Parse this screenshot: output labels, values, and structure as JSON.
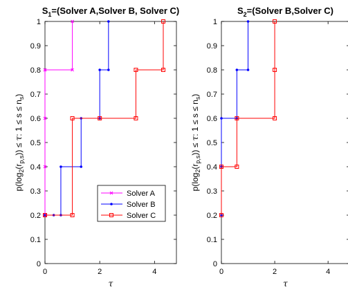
{
  "chart_data": [
    {
      "type": "line",
      "title": "S1 =(Solver A,Solver B, Solver C)",
      "title_parts": [
        "S",
        "1",
        "=(Solver A,Solver B, Solver C)"
      ],
      "xlabel": "τ",
      "ylabel": "p(log2(rp,s)) ≤ τ: 1 ≤ s ≤ ns",
      "xlim": [
        0,
        4.8
      ],
      "ylim": [
        0,
        1
      ],
      "x_ticks": [
        0,
        2,
        4
      ],
      "y_ticks": [
        0,
        0.1,
        0.2,
        0.3,
        0.4,
        0.5,
        0.6,
        0.7,
        0.8,
        0.9,
        1
      ],
      "x_tick_labels": [
        "0",
        "2",
        "4"
      ],
      "y_tick_labels": [
        "0",
        "0.1",
        "0.2",
        "0.3",
        "0.4",
        "0.5",
        "0.6",
        "0.7",
        "0.8",
        "0.9",
        "1"
      ],
      "grid": false,
      "legend_position": "lower-right",
      "series": [
        {
          "name": "Solver A",
          "color": "#ff00ff",
          "marker": "x",
          "x": [
            0,
            0,
            0,
            0,
            0,
            1,
            1
          ],
          "y": [
            0.2,
            0.4,
            0.6,
            0.8,
            0.8,
            0.8,
            1.0
          ]
        },
        {
          "name": "Solver B",
          "color": "#0000ff",
          "marker": "dot",
          "x": [
            0,
            0.32,
            0.58,
            0.58,
            1.32,
            1.32,
            2.0,
            2.0,
            2.32,
            2.32
          ],
          "y": [
            0.2,
            0.2,
            0.2,
            0.4,
            0.4,
            0.6,
            0.6,
            0.8,
            0.8,
            1.0
          ]
        },
        {
          "name": "Solver C",
          "color": "#ff0000",
          "marker": "square",
          "x": [
            0,
            1.0,
            1.0,
            2.0,
            3.32,
            3.32,
            4.32,
            4.32
          ],
          "y": [
            0.2,
            0.2,
            0.6,
            0.6,
            0.6,
            0.8,
            0.8,
            1.0
          ]
        }
      ]
    },
    {
      "type": "line",
      "title": "S2 =(Solver B,Solver C)",
      "title_parts": [
        "S",
        "2",
        "=(Solver B,Solver C)"
      ],
      "xlabel": "τ",
      "ylabel": "p(log2(rp,s)) ≤ τ: 1 ≤ s ≤ ns",
      "xlim": [
        0,
        4.8
      ],
      "ylim": [
        0,
        1
      ],
      "x_ticks": [
        0,
        2,
        4
      ],
      "y_ticks": [
        0,
        0.1,
        0.2,
        0.3,
        0.4,
        0.5,
        0.6,
        0.7,
        0.8,
        0.9,
        1
      ],
      "x_tick_labels": [
        "0",
        "2",
        "4"
      ],
      "y_tick_labels": [
        "0",
        "0.1",
        "0.2",
        "0.3",
        "0.4",
        "0.5",
        "0.6",
        "0.7",
        "0.8",
        "0.9",
        "1"
      ],
      "grid": false,
      "legend_position": "none",
      "series": [
        {
          "color": "#0000ff",
          "marker": "dot",
          "x": [
            0,
            0,
            0,
            0.58,
            0.58,
            1.0,
            1.0
          ],
          "y": [
            0.2,
            0.4,
            0.6,
            0.6,
            0.8,
            0.8,
            1.0
          ]
        },
        {
          "color": "#ff0000",
          "marker": "square",
          "x": [
            0,
            0,
            0.58,
            0.58,
            2.0,
            2.0,
            2.0
          ],
          "y": [
            0.2,
            0.4,
            0.4,
            0.6,
            0.6,
            0.8,
            1.0
          ]
        }
      ]
    }
  ]
}
